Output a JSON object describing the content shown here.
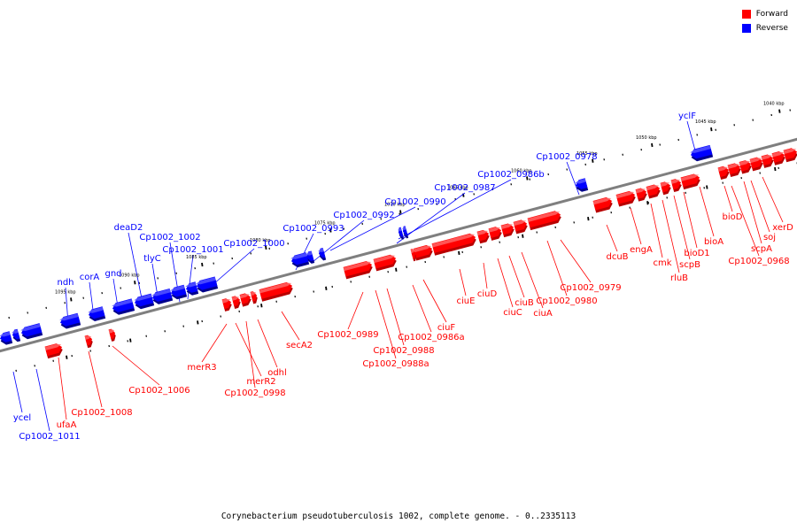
{
  "legend": {
    "items": [
      {
        "label": "Forward",
        "color": "#ff0000"
      },
      {
        "label": "Reverse",
        "color": "#0000ff"
      }
    ]
  },
  "caption": "Corynebacterium pseudotuberculosis 1002, complete genome. - 0..2335113",
  "colors": {
    "forward": "#ff0000",
    "reverse": "#0000ff",
    "backbone": "#7f7f7f"
  },
  "kbp_labels": [
    "1040 kbp",
    "1045 kbp",
    "1050 kbp",
    "1055 kbp",
    "1060 kbp",
    "1065 kbp",
    "1070 kbp",
    "1075 kbp",
    "1080 kbp",
    "1085 kbp",
    "1090 kbp",
    "1095 kbp"
  ],
  "forward_labels": [
    "xerD",
    "soj",
    "scpA",
    "Cp1002_0968",
    "bioD",
    "bioA",
    "bioD1",
    "scpB",
    "rluB",
    "cmk",
    "engA",
    "dcuB",
    "Cp1002_0979",
    "Cp1002_0980",
    "ciuA",
    "ciuB",
    "ciuC",
    "ciuD",
    "ciuE",
    "ciuF",
    "Cp1002_0986a",
    "Cp1002_0988",
    "Cp1002_0988a",
    "Cp1002_0989",
    "secA2",
    "odhl",
    "Cp1002_0998",
    "merR2",
    "merR3",
    "Cp1002_1006",
    "Cp1002_1008",
    "ufaA"
  ],
  "reverse_labels": [
    "yclF",
    "Cp1002_0978",
    "Cp1002_0986b",
    "Cp1002_0987",
    "Cp1002_0990",
    "Cp1002_0992",
    "Cp1002_0993",
    "Cp1002_1000",
    "Cp1002_1001",
    "Cp1002_1002",
    "tlyC",
    "deaD2",
    "gnd",
    "corA",
    "ndh",
    "ycel",
    "Cp1002_1011"
  ]
}
